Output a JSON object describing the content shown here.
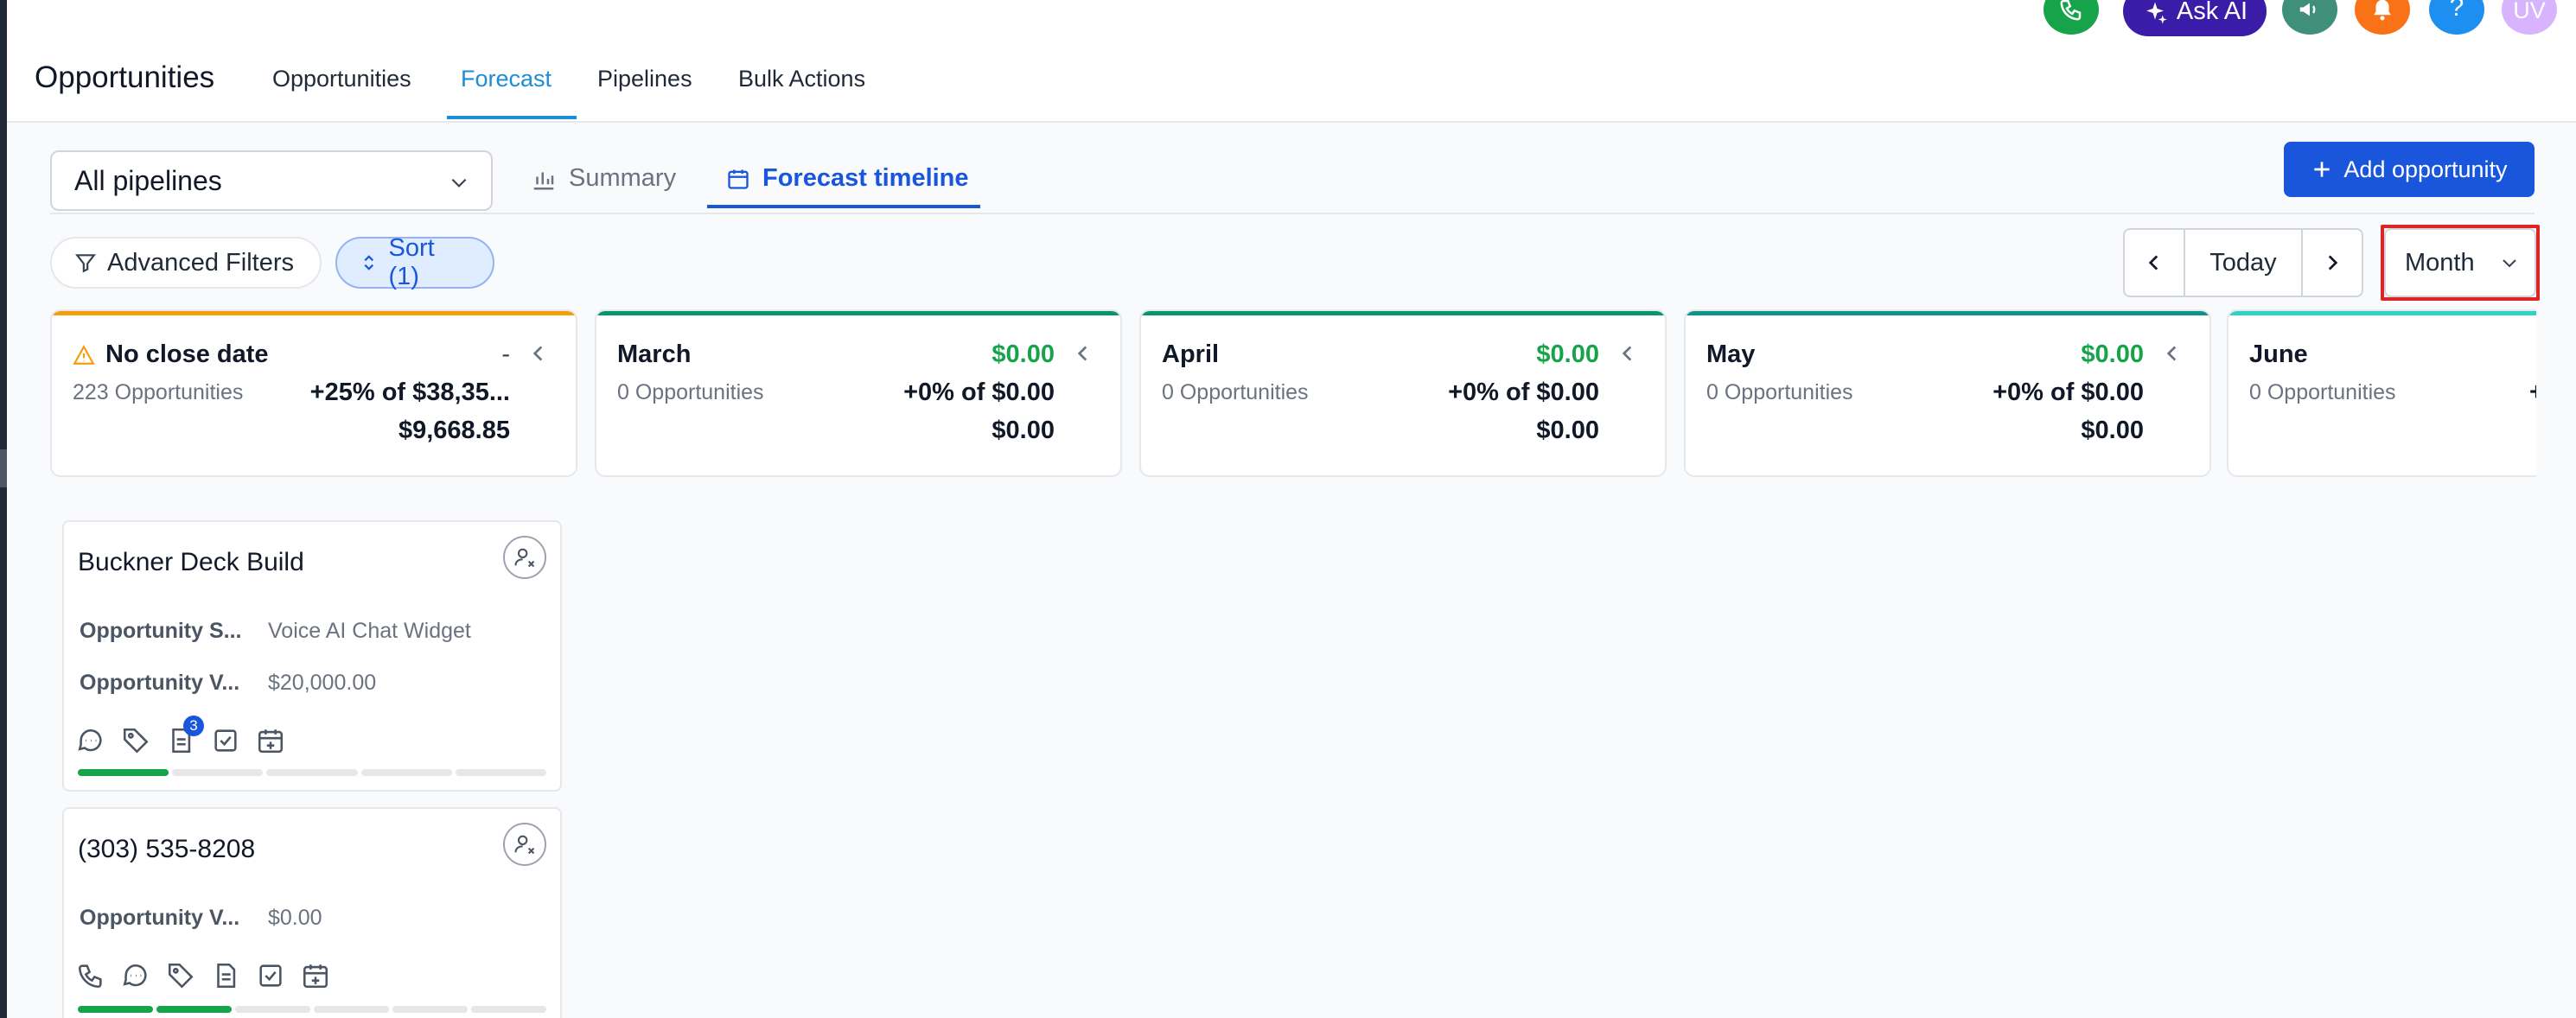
{
  "app": {
    "title": "Opportunities"
  },
  "nav": {
    "tabs": [
      {
        "label": "Opportunities"
      },
      {
        "label": "Forecast"
      },
      {
        "label": "Pipelines"
      },
      {
        "label": "Bulk Actions"
      }
    ],
    "active": "Forecast"
  },
  "header": {
    "ask_ai_label": "Ask AI",
    "avatar_initials": "UV",
    "help_label": "?"
  },
  "toolbar": {
    "pipeline_select": "All pipelines",
    "view_tabs": [
      {
        "label": "Summary"
      },
      {
        "label": "Forecast timeline"
      }
    ],
    "active_view": "Forecast timeline",
    "add_button": "Add opportunity",
    "filters_label": "Advanced Filters",
    "sort_label": "Sort (1)",
    "today_label": "Today",
    "period_select": "Month"
  },
  "columns": [
    {
      "name": "No close date",
      "count": "223 Opportunities",
      "amount": "-",
      "pct": "+25% of $38,35...",
      "total": "$9,668.85",
      "color": "#f59e0b",
      "warning": true
    },
    {
      "name": "March",
      "count": "0 Opportunities",
      "amount": "$0.00",
      "pct": "+0% of $0.00",
      "total": "$0.00",
      "color": "#059669"
    },
    {
      "name": "April",
      "count": "0 Opportunities",
      "amount": "$0.00",
      "pct": "+0% of $0.00",
      "total": "$0.00",
      "color": "#059669"
    },
    {
      "name": "May",
      "count": "0 Opportunities",
      "amount": "$0.00",
      "pct": "+0% of $0.00",
      "total": "$0.00",
      "color": "#0d9488"
    },
    {
      "name": "June",
      "count": "0 Opportunities",
      "amount": "",
      "pct": "+",
      "total": "",
      "color": "#2dd4bf"
    }
  ],
  "cards": [
    {
      "title": "Buckner Deck Build",
      "fields": [
        {
          "label": "Opportunity S...",
          "value": "Voice AI Chat Widget"
        },
        {
          "label": "Opportunity V...",
          "value": "$20,000.00"
        }
      ],
      "notes_badge": "3",
      "stages_total": 5,
      "stages_done": 1
    },
    {
      "title": "(303) 535-8208",
      "fields": [
        {
          "label": "Opportunity V...",
          "value": "$0.00"
        }
      ],
      "stages_total": 6,
      "stages_done": 2
    }
  ],
  "colors": {
    "accent": "#1a56db",
    "success": "#16a34a",
    "highlight": "#dc2626"
  }
}
